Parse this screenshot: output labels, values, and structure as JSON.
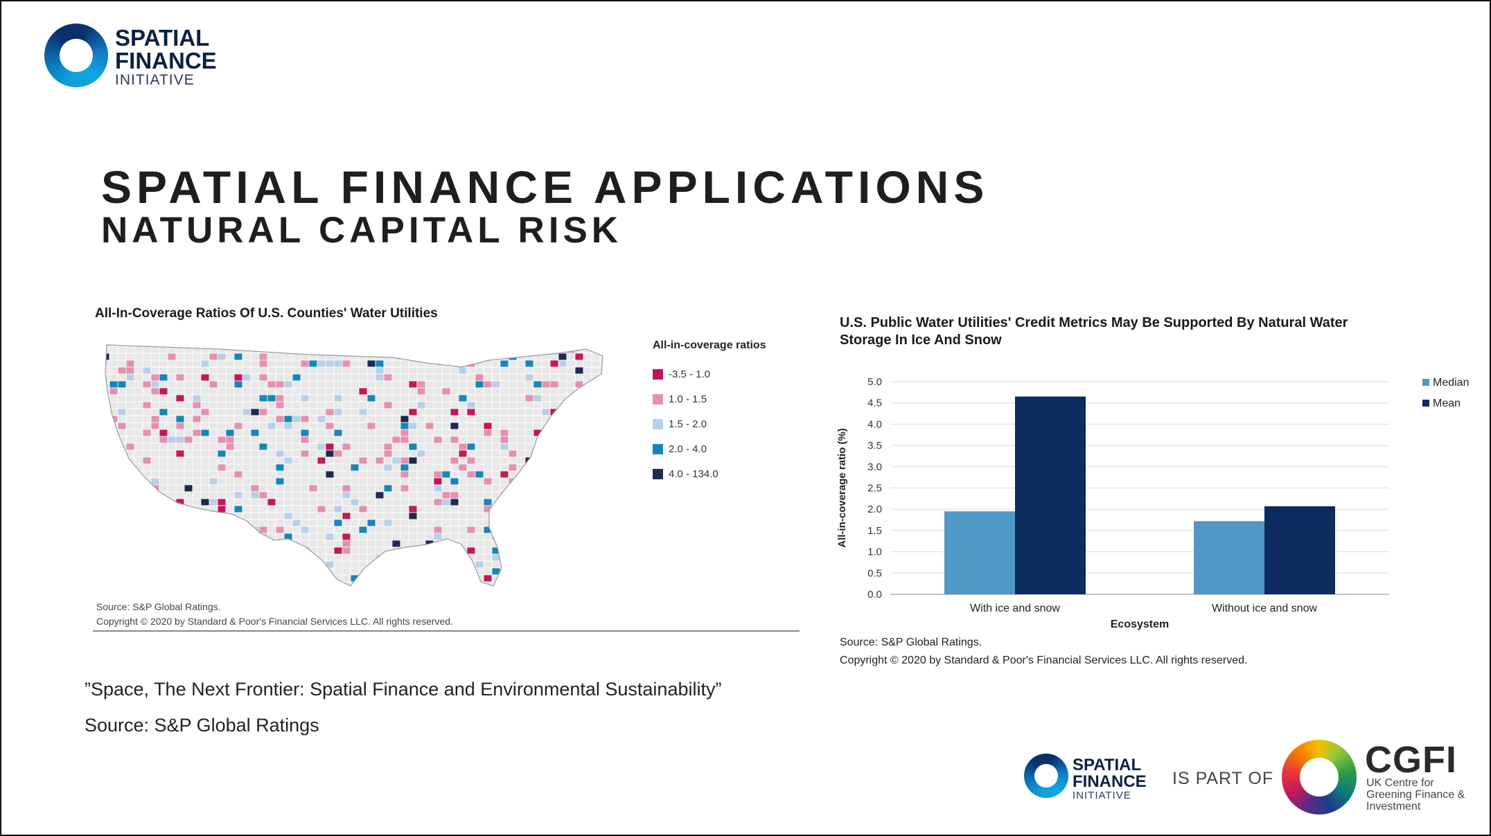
{
  "logo_top": {
    "line1": "SPATIAL",
    "line2": "FINANCE",
    "line3": "INITIATIVE"
  },
  "title": "SPATIAL FINANCE APPLICATIONS",
  "subtitle": "NATURAL CAPITAL RISK",
  "map_panel": {
    "title": "All-In-Coverage Ratios Of U.S. Counties' Water Utilities",
    "legend_title": "All-in-coverage ratios",
    "legend": [
      {
        "label": "-3.5 - 1.0",
        "color": "#c2185b"
      },
      {
        "label": "1.0 - 1.5",
        "color": "#e391b0"
      },
      {
        "label": "1.5 - 2.0",
        "color": "#b9cfe8"
      },
      {
        "label": "2.0 - 4.0",
        "color": "#1985b7"
      },
      {
        "label": "4.0 - 134.0",
        "color": "#1c2a50"
      }
    ],
    "no_data_color": "#e8e8e8",
    "source_line1": "Source: S&P Global Ratings.",
    "source_line2": "Copyright © 2020 by Standard & Poor's Financial Services LLC. All rights reserved."
  },
  "chart_data": {
    "type": "bar",
    "title": "U.S. Public Water Utilities' Credit Metrics May Be Supported By Natural Water Storage In Ice And Snow",
    "categories": [
      "With ice and snow",
      "Without ice and snow"
    ],
    "series": [
      {
        "name": "Median",
        "values": [
          1.95,
          1.72
        ],
        "color": "#4f97c4"
      },
      {
        "name": "Mean",
        "values": [
          4.65,
          2.07
        ],
        "color": "#0d2b5e"
      }
    ],
    "xlabel": "Ecosystem",
    "ylabel": "All-in-coverage ratio (%)",
    "ylim": [
      0,
      5
    ],
    "yticks": [
      "0.0",
      "0.5",
      "1.0",
      "1.5",
      "2.0",
      "2.5",
      "3.0",
      "3.5",
      "4.0",
      "4.5",
      "5.0"
    ],
    "grid": true,
    "legend_position": "right"
  },
  "bar_panel": {
    "source_line1": "Source: S&P Global Ratings.",
    "source_line2": "Copyright © 2020 by Standard & Poor's Financial Services LLC. All rights reserved."
  },
  "quote": "”Space, The Next Frontier: Spatial Finance and Environmental Sustainability”",
  "quote_source": "Source: S&P Global Ratings",
  "footer": {
    "sfi_line1": "SPATIAL",
    "sfi_line2": "FINANCE",
    "sfi_line3": "INITIATIVE",
    "is_part_of": "IS PART OF",
    "cgfi_name": "CGFI",
    "cgfi_sub": "UK Centre for Greening Finance & Investment"
  }
}
